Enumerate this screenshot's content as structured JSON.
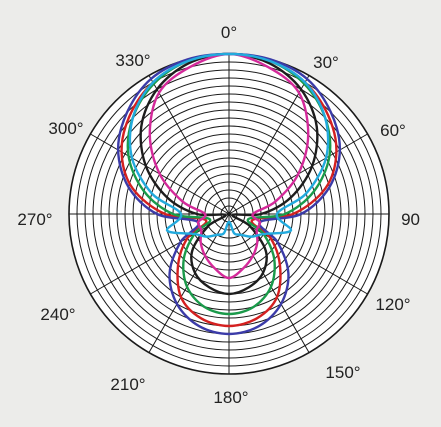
{
  "chart_data": {
    "type": "polar-line",
    "title": "",
    "angle_unit": "degrees",
    "angle_direction": "clockwise",
    "zero_at": "top",
    "rings": 20,
    "spoke_interval_deg": 30,
    "angle_tick_labels": [
      "0°",
      "30°",
      "60°",
      "90",
      "120°",
      "150°",
      "180°",
      "210°",
      "240°",
      "270°",
      "300°",
      "330°"
    ],
    "angles": [
      0,
      15,
      30,
      45,
      60,
      75,
      90,
      105,
      120,
      135,
      150,
      165,
      180,
      195,
      210,
      225,
      240,
      255,
      270,
      285,
      300,
      315,
      330,
      345
    ],
    "series": [
      {
        "color": "#d42020",
        "values": [
          20,
          19.8,
          19,
          17.5,
          15.5,
          12.5,
          8,
          3,
          6,
          9,
          12,
          13.5,
          14,
          13.5,
          12,
          9,
          6,
          3,
          8,
          12.5,
          15.5,
          17.5,
          19,
          19.8
        ]
      },
      {
        "color": "#1d1d1d",
        "values": [
          20,
          19.5,
          18,
          15.5,
          12,
          8,
          4,
          0.5,
          3,
          6.5,
          8.5,
          9.5,
          10,
          9.5,
          8.5,
          6.5,
          3,
          0.5,
          4,
          8,
          12,
          15.5,
          18,
          19.5
        ]
      },
      {
        "color": "#1a9a4a",
        "values": [
          20,
          19.8,
          18.8,
          17,
          14.5,
          11,
          7,
          2.5,
          5,
          8,
          10.5,
          12,
          12.5,
          12,
          10.5,
          8,
          5,
          2.5,
          7,
          11,
          14.5,
          17,
          18.8,
          19.8
        ]
      },
      {
        "color": "#3b3ba8",
        "values": [
          20,
          20,
          19.5,
          18,
          16,
          13,
          9,
          4,
          7,
          10.5,
          13,
          14.5,
          15,
          14.5,
          13,
          10.5,
          7,
          4,
          9,
          13,
          16,
          18,
          19.5,
          20
        ]
      },
      {
        "color": "#d42a9a",
        "values": [
          20,
          19,
          17.5,
          14,
          10,
          6,
          3,
          4,
          4,
          5,
          6,
          7,
          8,
          7,
          6,
          5,
          4,
          4,
          3,
          6,
          10,
          14,
          17.5,
          19
        ]
      },
      {
        "color": "#22aadd",
        "values": [
          20,
          19.8,
          19,
          17,
          14,
          10,
          6,
          8,
          5,
          4,
          3,
          2.5,
          1,
          2.5,
          3,
          4,
          5,
          8,
          6,
          10,
          14,
          17,
          19,
          19.8
        ]
      }
    ]
  }
}
